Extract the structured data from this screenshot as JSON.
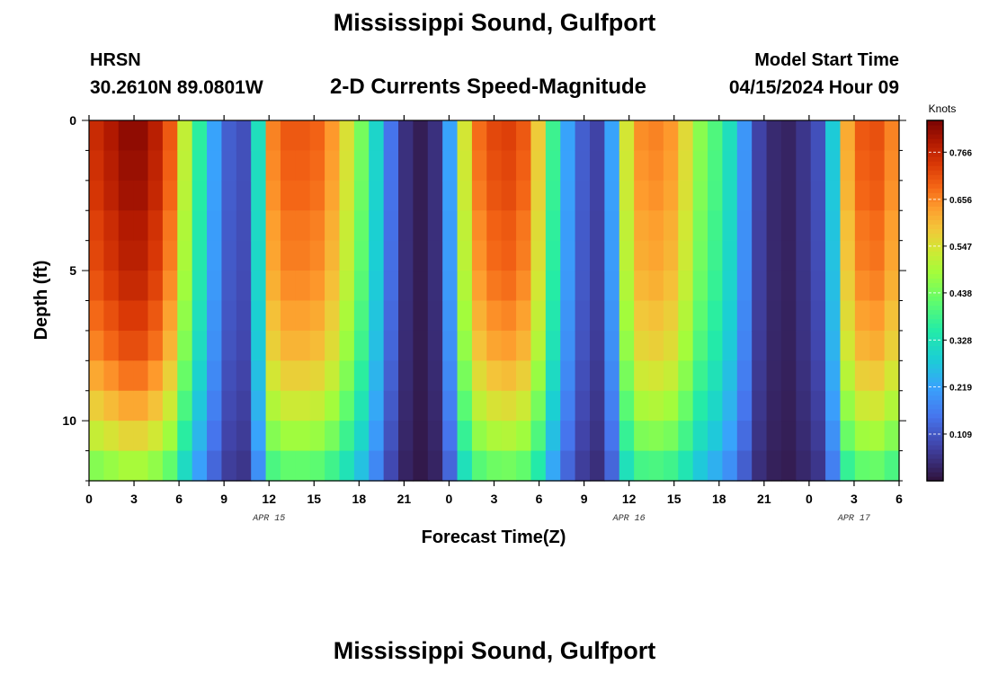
{
  "header": {
    "title_top": "Mississippi Sound, Gulfport",
    "station_code": "HRSN",
    "station_coords": "30.2610N  89.0801W",
    "plot_title": "2-D Currents Speed-Magnitude",
    "model_start_label": "Model Start Time",
    "model_start_value": "04/15/2024 Hour 09"
  },
  "footer": {
    "title_bottom": "Mississippi Sound, Gulfport"
  },
  "chart_data": {
    "type": "heatmap",
    "xlabel": "Forecast Time(Z)",
    "ylabel": "Depth (ft)",
    "x_range_hours": [
      0,
      54
    ],
    "x_tick_labels": [
      "0",
      "3",
      "6",
      "9",
      "12",
      "15",
      "18",
      "21",
      "0",
      "3",
      "6",
      "9",
      "12",
      "15",
      "18",
      "21",
      "0",
      "3",
      "6"
    ],
    "x_tick_hours": [
      0,
      3,
      6,
      9,
      12,
      15,
      18,
      21,
      24,
      27,
      30,
      33,
      36,
      39,
      42,
      45,
      48,
      51,
      54
    ],
    "date_labels": [
      {
        "text": "APR 15",
        "hour": 12
      },
      {
        "text": "APR 16",
        "hour": 36
      },
      {
        "text": "APR 17",
        "hour": 51
      }
    ],
    "y_range_ft": [
      0,
      12
    ],
    "y_reversed": true,
    "y_tick_labels": [
      "0",
      "5",
      "10"
    ],
    "y_tick_values": [
      0,
      5,
      10
    ],
    "colorbar": {
      "title": "Knots",
      "min": 0.0,
      "max": 0.84,
      "tick_labels": [
        "0.109",
        "0.219",
        "0.328",
        "0.438",
        "0.547",
        "0.656",
        "0.766"
      ],
      "tick_values": [
        0.109,
        0.219,
        0.328,
        0.438,
        0.547,
        0.656,
        0.766
      ]
    },
    "depth_bins_ft": [
      0,
      1,
      2,
      3,
      4,
      5,
      6,
      7,
      8,
      9,
      10,
      11,
      12
    ],
    "time_step_hours": 1,
    "surface_speed_knots_hourly": [
      0.76,
      0.79,
      0.82,
      0.82,
      0.78,
      0.7,
      0.52,
      0.36,
      0.22,
      0.12,
      0.1,
      0.32,
      0.66,
      0.7,
      0.7,
      0.69,
      0.64,
      0.55,
      0.44,
      0.3,
      0.15,
      0.05,
      0.02,
      0.05,
      0.22,
      0.54,
      0.68,
      0.72,
      0.73,
      0.7,
      0.58,
      0.38,
      0.22,
      0.12,
      0.08,
      0.22,
      0.54,
      0.65,
      0.66,
      0.64,
      0.56,
      0.46,
      0.4,
      0.32,
      0.2,
      0.08,
      0.04,
      0.03,
      0.06,
      0.1,
      0.28,
      0.62,
      0.7,
      0.71,
      0.66
    ],
    "depth_attenuation": [
      1.0,
      0.99,
      0.98,
      0.96,
      0.95,
      0.93,
      0.9,
      0.87,
      0.82,
      0.76,
      0.69,
      0.6
    ],
    "note": "Speed at time t and depth bin d is approximately surface_speed_knots_hourly[t] * depth_attenuation[d]; values estimated from the color field"
  }
}
